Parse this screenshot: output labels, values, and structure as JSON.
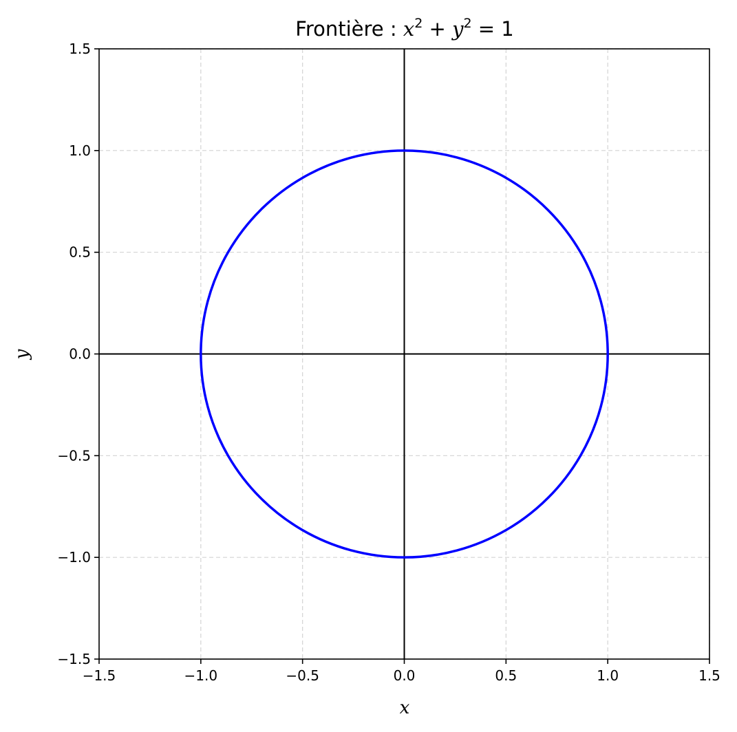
{
  "chart_data": {
    "type": "line",
    "title": {
      "prefix": "Frontière : ",
      "equation": [
        "x",
        "2",
        " + ",
        "y",
        "2",
        " = 1"
      ]
    },
    "xlabel": "x",
    "ylabel": "y",
    "xlim": [
      -1.5,
      1.5
    ],
    "ylim": [
      -1.5,
      1.5
    ],
    "xticks": [
      -1.5,
      -1.0,
      -0.5,
      0.0,
      0.5,
      1.0,
      1.5
    ],
    "yticks": [
      -1.5,
      -1.0,
      -0.5,
      0.0,
      0.5,
      1.0,
      1.5
    ],
    "xtick_labels": [
      "−1.5",
      "−1.0",
      "−0.5",
      "0.0",
      "0.5",
      "1.0",
      "1.5"
    ],
    "ytick_labels": [
      "−1.5",
      "−1.0",
      "−0.5",
      "0.0",
      "0.5",
      "1.0",
      "1.5"
    ],
    "grid": true,
    "reference_lines": {
      "x": 0,
      "y": 0
    },
    "series": [
      {
        "color": "#0000ff",
        "points": [
          [
            1.0,
            0.0
          ],
          [
            0.966,
            0.259
          ],
          [
            0.866,
            0.5
          ],
          [
            0.707,
            0.707
          ],
          [
            0.5,
            0.866
          ],
          [
            0.259,
            0.966
          ],
          [
            0.0,
            1.0
          ],
          [
            -0.259,
            0.966
          ],
          [
            -0.5,
            0.866
          ],
          [
            -0.707,
            0.707
          ],
          [
            -0.866,
            0.5
          ],
          [
            -0.966,
            0.259
          ],
          [
            -1.0,
            0.0
          ],
          [
            -0.966,
            -0.259
          ],
          [
            -0.866,
            -0.5
          ],
          [
            -0.707,
            -0.707
          ],
          [
            -0.5,
            -0.866
          ],
          [
            -0.259,
            -0.966
          ],
          [
            0.0,
            -1.0
          ],
          [
            0.259,
            -0.966
          ],
          [
            0.5,
            -0.866
          ],
          [
            0.707,
            -0.707
          ],
          [
            0.866,
            -0.5
          ],
          [
            0.966,
            -0.259
          ],
          [
            1.0,
            0.0
          ]
        ]
      }
    ]
  }
}
